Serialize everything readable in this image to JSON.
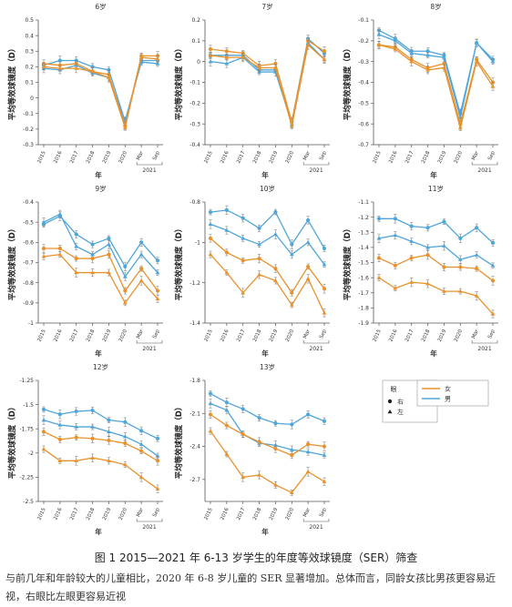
{
  "figure": {
    "caption": "图 1 2015—2021 年 6-13 岁学生的年度等效球镜度（SER）筛查",
    "body_text": "与前几年和年龄较大的儿童相比，2020 年 6-8 岁儿童的 SER 显著增加。总体而言，同龄女孩比男孩更容易近视，右眼比左眼更容易近视",
    "legend": {
      "eye_title": "眼",
      "right_label": "右",
      "left_label": "左",
      "female_label": "女",
      "male_label": "男"
    },
    "colors": {
      "female": "#E8922E",
      "male": "#4FA6D8",
      "axis": "#555555",
      "errorbar": "#888888"
    }
  },
  "chart_data": [
    {
      "type": "line",
      "title": "6岁",
      "ylabel": "平均等效球镜度（D）",
      "xlabel": "年",
      "categories": [
        "2015",
        "2016",
        "2017",
        "2018",
        "2019",
        "2020",
        "Mar",
        "Sep"
      ],
      "x_group_label": "2021",
      "ylim": [
        -0.3,
        0.5
      ],
      "yticks": [
        0.5,
        0.4,
        0.3,
        0.2,
        0.1,
        0,
        -0.1,
        -0.2,
        -0.3
      ],
      "series": [
        {
          "sex": "male",
          "eye": "right",
          "values": [
            0.21,
            0.24,
            0.24,
            0.2,
            0.18,
            -0.15,
            0.24,
            0.24
          ]
        },
        {
          "sex": "male",
          "eye": "left",
          "values": [
            0.19,
            0.18,
            0.21,
            0.16,
            0.13,
            -0.15,
            0.23,
            0.22
          ]
        },
        {
          "sex": "female",
          "eye": "right",
          "values": [
            0.22,
            0.21,
            0.22,
            0.17,
            0.15,
            -0.18,
            0.27,
            0.27
          ]
        },
        {
          "sex": "female",
          "eye": "left",
          "values": [
            0.2,
            0.19,
            0.19,
            0.17,
            0.13,
            -0.19,
            0.26,
            0.25
          ]
        }
      ]
    },
    {
      "type": "line",
      "title": "7岁",
      "ylabel": "平均等效球镜度（D）",
      "xlabel": "年",
      "categories": [
        "2015",
        "2016",
        "2017",
        "2018",
        "2019",
        "2020",
        "Mar",
        "Sep"
      ],
      "x_group_label": "2021",
      "ylim": [
        -0.4,
        0.2
      ],
      "yticks": [
        0.2,
        0.1,
        0,
        -0.1,
        -0.2,
        -0.3,
        -0.4
      ],
      "series": [
        {
          "sex": "male",
          "eye": "right",
          "values": [
            0.03,
            0.03,
            0.03,
            -0.04,
            -0.04,
            -0.29,
            0.11,
            0.04
          ]
        },
        {
          "sex": "male",
          "eye": "left",
          "values": [
            0.0,
            -0.01,
            0.02,
            -0.05,
            -0.05,
            -0.3,
            0.09,
            0.01
          ]
        },
        {
          "sex": "female",
          "eye": "right",
          "values": [
            0.06,
            0.05,
            0.04,
            -0.02,
            -0.01,
            -0.29,
            0.1,
            0.05
          ]
        },
        {
          "sex": "female",
          "eye": "left",
          "values": [
            0.03,
            0.02,
            0.02,
            -0.03,
            -0.03,
            -0.31,
            0.08,
            0.01
          ]
        }
      ]
    },
    {
      "type": "line",
      "title": "8岁",
      "ylabel": "平均等效球镜度（D）",
      "xlabel": "年",
      "categories": [
        "2015",
        "2016",
        "2017",
        "2018",
        "2019",
        "2020",
        "Mar",
        "Sep"
      ],
      "x_group_label": "2021",
      "ylim": [
        -0.7,
        -0.1
      ],
      "yticks": [
        -0.1,
        -0.2,
        -0.3,
        -0.4,
        -0.5,
        -0.6,
        -0.7
      ],
      "series": [
        {
          "sex": "male",
          "eye": "right",
          "values": [
            -0.15,
            -0.19,
            -0.25,
            -0.25,
            -0.27,
            -0.55,
            -0.21,
            -0.29
          ]
        },
        {
          "sex": "male",
          "eye": "left",
          "values": [
            -0.17,
            -0.2,
            -0.26,
            -0.27,
            -0.28,
            -0.57,
            -0.21,
            -0.3
          ]
        },
        {
          "sex": "female",
          "eye": "right",
          "values": [
            -0.22,
            -0.23,
            -0.29,
            -0.33,
            -0.31,
            -0.6,
            -0.29,
            -0.4
          ]
        },
        {
          "sex": "female",
          "eye": "left",
          "values": [
            -0.22,
            -0.24,
            -0.3,
            -0.34,
            -0.33,
            -0.62,
            -0.3,
            -0.42
          ]
        }
      ]
    },
    {
      "type": "line",
      "title": "9岁",
      "ylabel": "平均等效球镜度（D）",
      "xlabel": "年",
      "categories": [
        "2015",
        "2016",
        "2017",
        "2018",
        "2019",
        "2020",
        "Mar",
        "Sep"
      ],
      "x_group_label": "2021",
      "ylim": [
        -1.0,
        -0.4
      ],
      "yticks": [
        -0.4,
        -0.5,
        -0.6,
        -0.7,
        -0.8,
        -0.9,
        -1.0
      ],
      "series": [
        {
          "sex": "male",
          "eye": "right",
          "values": [
            -0.51,
            -0.47,
            -0.56,
            -0.61,
            -0.58,
            -0.72,
            -0.6,
            -0.69
          ]
        },
        {
          "sex": "male",
          "eye": "left",
          "values": [
            -0.5,
            -0.46,
            -0.62,
            -0.66,
            -0.61,
            -0.77,
            -0.66,
            -0.75
          ]
        },
        {
          "sex": "female",
          "eye": "right",
          "values": [
            -0.63,
            -0.63,
            -0.68,
            -0.68,
            -0.66,
            -0.84,
            -0.73,
            -0.84
          ]
        },
        {
          "sex": "female",
          "eye": "left",
          "values": [
            -0.67,
            -0.66,
            -0.75,
            -0.75,
            -0.75,
            -0.9,
            -0.79,
            -0.88
          ]
        }
      ]
    },
    {
      "type": "line",
      "title": "10岁",
      "ylabel": "平均等效球镜度（D）",
      "xlabel": "年",
      "categories": [
        "2015",
        "2016",
        "2017",
        "2018",
        "2019",
        "2020",
        "Mar",
        "Sep"
      ],
      "x_group_label": "2021",
      "ylim": [
        -1.4,
        -0.8
      ],
      "yticks": [
        -0.8,
        -1.0,
        -1.2,
        -1.4
      ],
      "series": [
        {
          "sex": "male",
          "eye": "right",
          "values": [
            -0.85,
            -0.84,
            -0.88,
            -0.93,
            -0.85,
            -1.01,
            -0.89,
            -1.03
          ]
        },
        {
          "sex": "male",
          "eye": "left",
          "values": [
            -0.91,
            -0.94,
            -0.98,
            -1.01,
            -0.96,
            -1.06,
            -1.0,
            -1.11
          ]
        },
        {
          "sex": "female",
          "eye": "right",
          "values": [
            -0.98,
            -1.05,
            -1.09,
            -1.08,
            -1.13,
            -1.25,
            -1.12,
            -1.23
          ]
        },
        {
          "sex": "female",
          "eye": "left",
          "values": [
            -1.06,
            -1.15,
            -1.25,
            -1.16,
            -1.19,
            -1.31,
            -1.18,
            -1.35
          ]
        }
      ]
    },
    {
      "type": "line",
      "title": "11岁",
      "ylabel": "平均等效球镜度（D）",
      "xlabel": "年",
      "categories": [
        "2015",
        "2016",
        "2017",
        "2018",
        "2019",
        "2020",
        "Mar",
        "Sep"
      ],
      "x_group_label": "2021",
      "ylim": [
        -1.9,
        -1.1
      ],
      "yticks": [
        -1.1,
        -1.2,
        -1.3,
        -1.4,
        -1.5,
        -1.6,
        -1.7,
        -1.8,
        -1.9
      ],
      "series": [
        {
          "sex": "male",
          "eye": "right",
          "values": [
            -1.21,
            -1.21,
            -1.26,
            -1.27,
            -1.23,
            -1.34,
            -1.27,
            -1.37
          ]
        },
        {
          "sex": "male",
          "eye": "left",
          "values": [
            -1.34,
            -1.32,
            -1.36,
            -1.4,
            -1.39,
            -1.48,
            -1.45,
            -1.52
          ]
        },
        {
          "sex": "female",
          "eye": "right",
          "values": [
            -1.47,
            -1.52,
            -1.47,
            -1.45,
            -1.53,
            -1.53,
            -1.54,
            -1.62
          ]
        },
        {
          "sex": "female",
          "eye": "left",
          "values": [
            -1.6,
            -1.67,
            -1.63,
            -1.64,
            -1.69,
            -1.69,
            -1.72,
            -1.84
          ]
        }
      ]
    },
    {
      "type": "line",
      "title": "12岁",
      "ylabel": "平均等效球镜度（D）",
      "xlabel": "年",
      "categories": [
        "2015",
        "2016",
        "2017",
        "2018",
        "2019",
        "2020",
        "Mar",
        "Sep"
      ],
      "x_group_label": "2021",
      "ylim": [
        -2.5,
        -1.25
      ],
      "yticks": [
        -1.25,
        -1.5,
        -1.75,
        -2.0,
        -2.25,
        -2.5
      ],
      "series": [
        {
          "sex": "male",
          "eye": "right",
          "values": [
            -1.55,
            -1.6,
            -1.57,
            -1.56,
            -1.66,
            -1.68,
            -1.77,
            -1.85
          ]
        },
        {
          "sex": "male",
          "eye": "left",
          "values": [
            -1.66,
            -1.71,
            -1.73,
            -1.73,
            -1.78,
            -1.83,
            -1.91,
            -2.03
          ]
        },
        {
          "sex": "female",
          "eye": "right",
          "values": [
            -1.78,
            -1.86,
            -1.84,
            -1.85,
            -1.87,
            -1.9,
            -1.98,
            -2.08
          ]
        },
        {
          "sex": "female",
          "eye": "left",
          "values": [
            -1.96,
            -2.08,
            -2.08,
            -2.05,
            -2.08,
            -2.12,
            -2.25,
            -2.37
          ]
        }
      ]
    },
    {
      "type": "line",
      "title": "13岁",
      "ylabel": "平均等效球镜度（D）",
      "xlabel": "年",
      "categories": [
        "2015",
        "2016",
        "2017",
        "2018",
        "2019",
        "2020",
        "Mar",
        "Sep"
      ],
      "x_group_label": "2021",
      "ylim": [
        -2.9,
        -1.8
      ],
      "yticks": [
        -1.8,
        -2.1,
        -2.4,
        -2.7
      ],
      "series": [
        {
          "sex": "male",
          "eye": "right",
          "values": [
            -1.92,
            -2.0,
            -2.06,
            -2.14,
            -2.19,
            -2.2,
            -2.11,
            -2.17
          ]
        },
        {
          "sex": "male",
          "eye": "left",
          "values": [
            -2.01,
            -2.07,
            -2.29,
            -2.37,
            -2.39,
            -2.43,
            -2.45,
            -2.48
          ]
        },
        {
          "sex": "female",
          "eye": "right",
          "values": [
            -2.11,
            -2.21,
            -2.29,
            -2.36,
            -2.42,
            -2.48,
            -2.38,
            -2.4
          ]
        },
        {
          "sex": "female",
          "eye": "left",
          "values": [
            -2.26,
            -2.47,
            -2.68,
            -2.66,
            -2.75,
            -2.82,
            -2.63,
            -2.72
          ]
        }
      ]
    }
  ]
}
